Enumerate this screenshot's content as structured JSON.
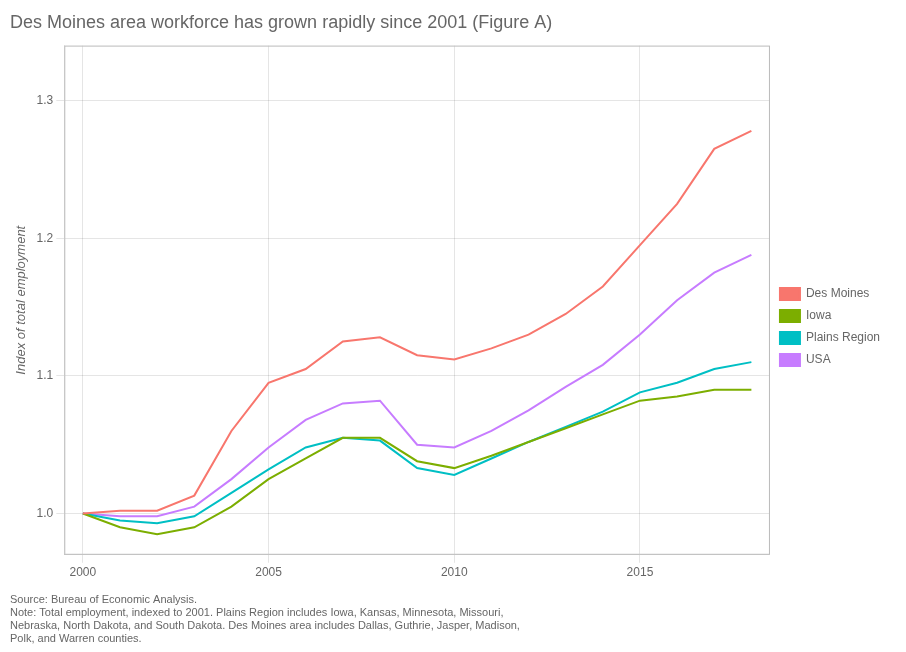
{
  "chart_data": {
    "type": "line",
    "title": "Des Moines area workforce has grown rapidly since 2001 (Figure A)",
    "ylabel": "Index of total employment",
    "annotations": [
      "Source: Bureau of Economic Analysis.\nNote: Total employment, indexed to 2001. Plains Region includes Iowa, Kansas, Minnesota, Missouri,\nNebraska, North Dakota, and South Dakota. Des Moines area includes Dallas, Guthrie, Jasper, Madison,\nPolk, and Warren counties."
    ],
    "x": [
      2000,
      2001,
      2002,
      2003,
      2004,
      2005,
      2006,
      2007,
      2008,
      2009,
      2010,
      2011,
      2012,
      2013,
      2014,
      2015,
      2016,
      2017,
      2018
    ],
    "series": [
      {
        "name": "Des Moines",
        "color": "#F8766D",
        "values": [
          1.0,
          1.002,
          1.002,
          1.013,
          1.06,
          1.095,
          1.105,
          1.125,
          1.128,
          1.115,
          1.112,
          1.12,
          1.13,
          1.145,
          1.165,
          1.195,
          1.225,
          1.265,
          1.278
        ]
      },
      {
        "name": "Iowa",
        "color": "#7CAE00",
        "values": [
          1.0,
          0.99,
          0.985,
          0.99,
          1.005,
          1.025,
          1.04,
          1.055,
          1.055,
          1.038,
          1.033,
          1.042,
          1.052,
          1.062,
          1.072,
          1.082,
          1.085,
          1.09,
          1.09
        ]
      },
      {
        "name": "Plains Region",
        "color": "#00BFC4",
        "values": [
          1.0,
          0.995,
          0.993,
          0.998,
          1.015,
          1.032,
          1.048,
          1.055,
          1.053,
          1.033,
          1.028,
          1.04,
          1.052,
          1.063,
          1.074,
          1.088,
          1.095,
          1.105,
          1.11
        ]
      },
      {
        "name": "USA",
        "color": "#C77CFF",
        "values": [
          1.0,
          0.998,
          0.998,
          1.005,
          1.025,
          1.048,
          1.068,
          1.08,
          1.082,
          1.05,
          1.048,
          1.06,
          1.075,
          1.092,
          1.108,
          1.13,
          1.155,
          1.175,
          1.188
        ]
      }
    ],
    "xlim": [
      1999.5,
      2018.5
    ],
    "xticks": [
      2000,
      2005,
      2010,
      2015
    ],
    "ylim": [
      0.97,
      1.34
    ],
    "yticks": [
      {
        "value": 1.0,
        "label": "1.0"
      },
      1.1,
      1.2,
      1.3
    ],
    "grid": true,
    "legend": "right"
  }
}
